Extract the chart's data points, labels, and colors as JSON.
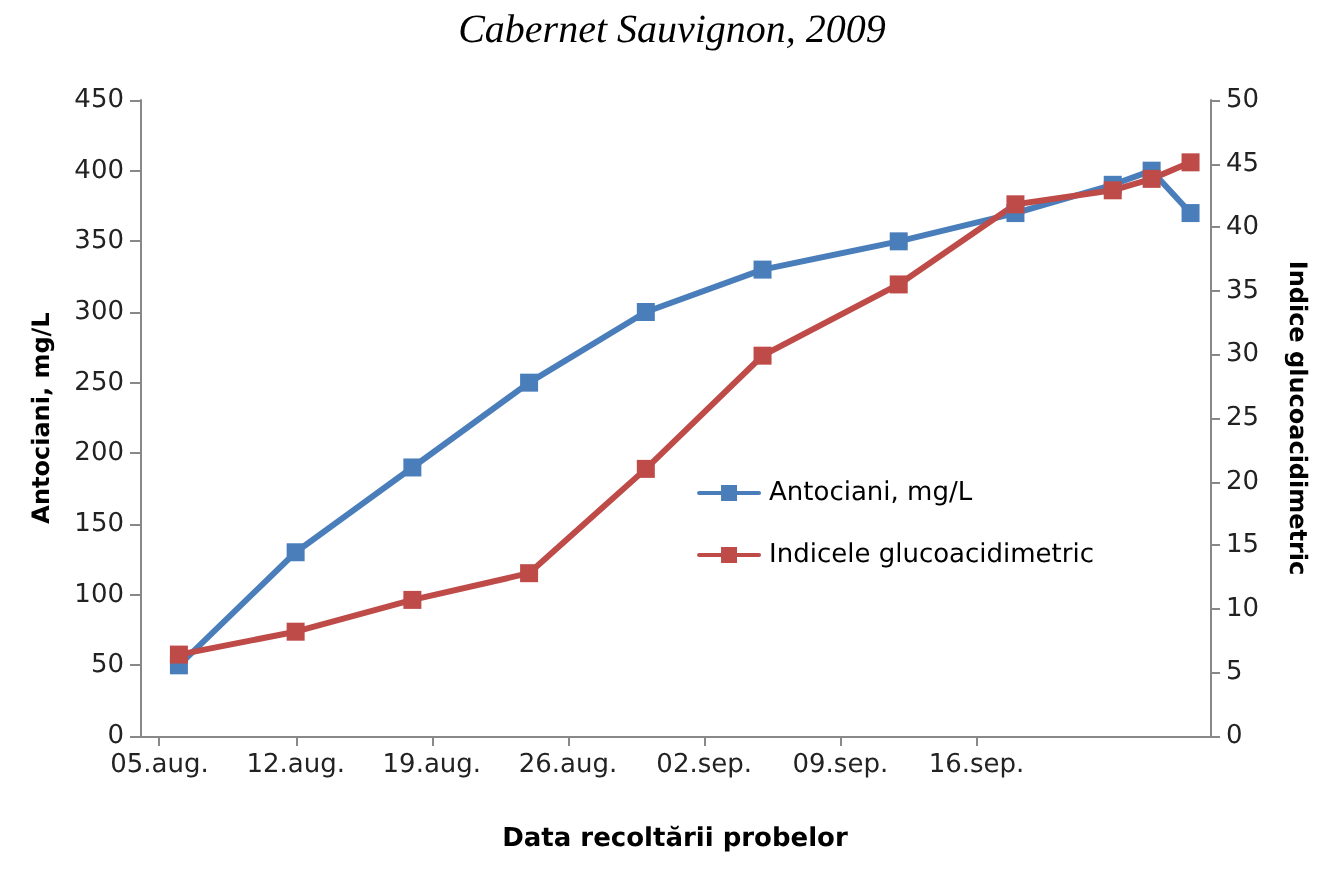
{
  "chart_data": {
    "type": "line",
    "title": "Cabernet Sauvignon, 2009",
    "xlabel": "Data recoltării probelor",
    "ylabel": "Antociani, mg/L",
    "y2label": "Indice glucoacidimetric",
    "x": [
      "2009-08-06",
      "2009-08-12",
      "2009-08-18",
      "2009-08-24",
      "2009-08-30",
      "2009-09-05",
      "2009-09-12",
      "2009-09-18",
      "2009-09-23",
      "2009-09-25",
      "2009-09-27"
    ],
    "series": [
      {
        "name": "Antociani, mg/L",
        "color": "#4a7ebb",
        "values": [
          50,
          130,
          190,
          250,
          300,
          330,
          350,
          370,
          390,
          400,
          370
        ]
      },
      {
        "name": "Indicele glucoacidimetric",
        "color": "#be4b48",
        "axis": "y2",
        "values": [
          6.4,
          8.2,
          10.7,
          12.8,
          21.0,
          29.9,
          35.5,
          41.8,
          42.9,
          43.8,
          45.1
        ]
      }
    ],
    "xlim": [
      "2009-08-04",
      "2009-09-28"
    ],
    "xticks": [
      {
        "value": "2009-08-05",
        "label": "05.aug."
      },
      {
        "value": "2009-08-12",
        "label": "12.aug."
      },
      {
        "value": "2009-08-19",
        "label": "19.aug."
      },
      {
        "value": "2009-08-26",
        "label": "26.aug."
      },
      {
        "value": "2009-09-02",
        "label": "02.sep."
      },
      {
        "value": "2009-09-09",
        "label": "09.sep."
      },
      {
        "value": "2009-09-16",
        "label": "16.sep."
      }
    ],
    "ylim": [
      0,
      450
    ],
    "yticks": [
      0,
      50,
      100,
      150,
      200,
      250,
      300,
      350,
      400,
      450
    ],
    "y2lim": [
      0,
      50
    ],
    "y2ticks": [
      0,
      5,
      10,
      15,
      20,
      25,
      30,
      35,
      40,
      45,
      50
    ],
    "grid": false,
    "legend": "right",
    "marker": "square",
    "line_style": "solid"
  }
}
